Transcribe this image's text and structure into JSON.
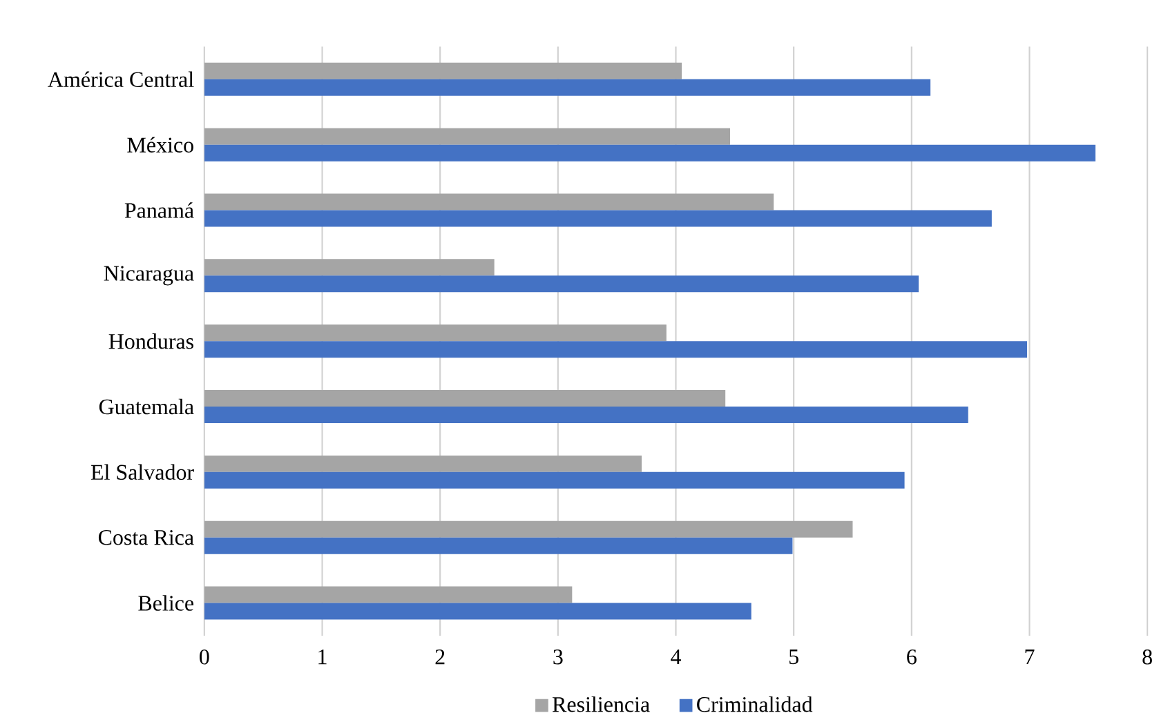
{
  "chart_data": {
    "type": "bar",
    "orientation": "horizontal",
    "categories": [
      "América Central",
      "México",
      "Panamá",
      "Nicaragua",
      "Honduras",
      "Guatemala",
      "El Salvador",
      "Costa Rica",
      "Belice"
    ],
    "series": [
      {
        "name": "Resiliencia",
        "color": "#a5a5a5",
        "values": [
          4.05,
          4.46,
          4.83,
          2.46,
          3.92,
          4.42,
          3.71,
          5.5,
          3.12
        ]
      },
      {
        "name": "Criminalidad",
        "color": "#4472c4",
        "values": [
          6.16,
          7.56,
          6.68,
          6.06,
          6.98,
          6.48,
          5.94,
          4.99,
          4.64
        ]
      }
    ],
    "xlim": [
      0,
      8
    ],
    "xticks": [
      0,
      1,
      2,
      3,
      4,
      5,
      6,
      7,
      8
    ],
    "grid": "x",
    "legend": "bottom"
  }
}
